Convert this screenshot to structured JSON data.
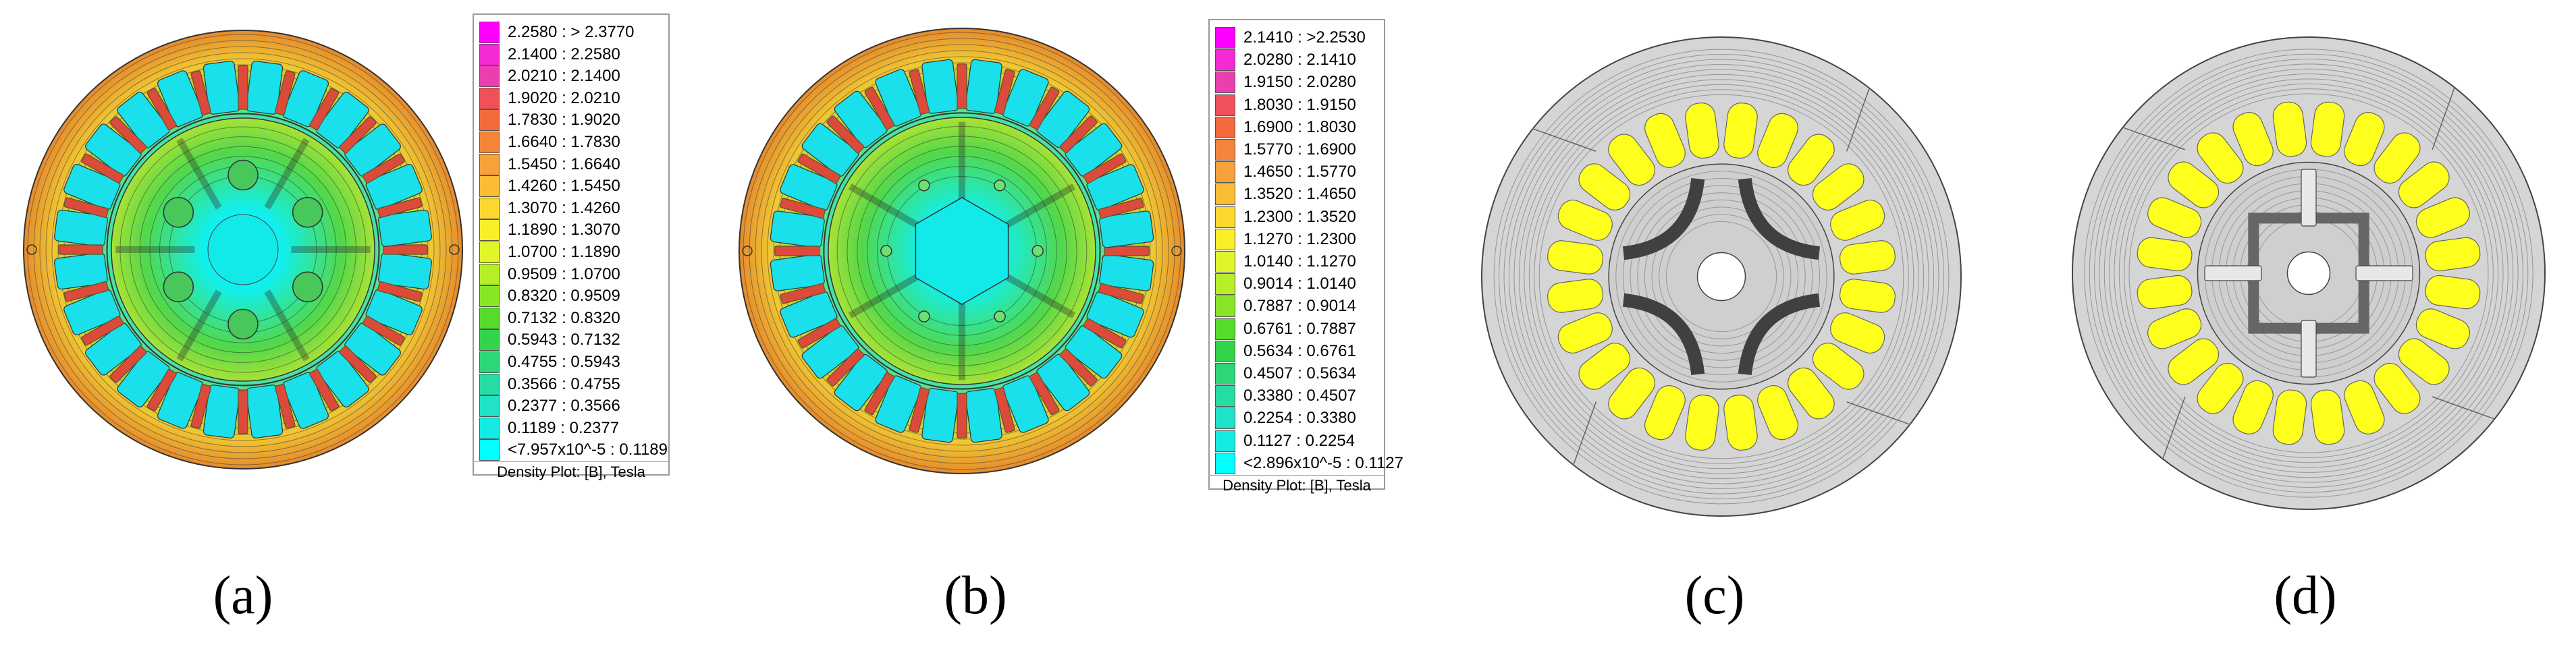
{
  "panels": [
    {
      "id": "a",
      "label": "(a)",
      "kind": "fluxmap",
      "rotor_poles": 6
    },
    {
      "id": "b",
      "label": "(b)",
      "kind": "fluxmap",
      "rotor_poles": 6
    },
    {
      "id": "c",
      "label": "(c)",
      "kind": "fluxlines",
      "rotor_poles": 4
    },
    {
      "id": "d",
      "label": "(d)",
      "kind": "fluxlines",
      "rotor_poles": 4
    }
  ],
  "legend_a": {
    "title": "Density Plot: [B], Tesla",
    "rows": [
      {
        "range": "2.2580 : > 2.3770",
        "color": "#ff00ff"
      },
      {
        "range": "2.1400 : 2.2580",
        "color": "#f42ad2"
      },
      {
        "range": "2.0210 : 2.1400",
        "color": "#ea3fae"
      },
      {
        "range": "1.9020 : 2.0210",
        "color": "#f0505a"
      },
      {
        "range": "1.7830 : 1.9020",
        "color": "#f26a3c"
      },
      {
        "range": "1.6640 : 1.7830",
        "color": "#f4843a"
      },
      {
        "range": "1.5450 : 1.6640",
        "color": "#f8a03a"
      },
      {
        "range": "1.4260 : 1.5450",
        "color": "#fbbd35"
      },
      {
        "range": "1.3070 : 1.4260",
        "color": "#fcd930"
      },
      {
        "range": "1.1890 : 1.3070",
        "color": "#fbef2a"
      },
      {
        "range": "1.0700 : 1.1890",
        "color": "#e0f52a"
      },
      {
        "range": "0.9509 : 1.0700",
        "color": "#b6ee28"
      },
      {
        "range": "0.8320 : 0.9509",
        "color": "#88e626"
      },
      {
        "range": "0.7132 : 0.8320",
        "color": "#55dc2a"
      },
      {
        "range": "0.5943 : 0.7132",
        "color": "#33d44a"
      },
      {
        "range": "0.4755 : 0.5943",
        "color": "#2ed67a"
      },
      {
        "range": "0.3566 : 0.4755",
        "color": "#26dba4"
      },
      {
        "range": "0.2377 : 0.3566",
        "color": "#1fe2c8"
      },
      {
        "range": "0.1189 : 0.2377",
        "color": "#14ebe3"
      },
      {
        "range": "<7.957x10^-5 : 0.1189",
        "color": "#00ffff"
      }
    ]
  },
  "legend_b": {
    "title": "Density Plot: [B], Tesla",
    "rows": [
      {
        "range": "2.1410 : >2.2530",
        "color": "#ff00ff"
      },
      {
        "range": "2.0280 : 2.1410",
        "color": "#f42ad2"
      },
      {
        "range": "1.9150 : 2.0280",
        "color": "#ea3fae"
      },
      {
        "range": "1.8030 : 1.9150",
        "color": "#f0505a"
      },
      {
        "range": "1.6900 : 1.8030",
        "color": "#f26a3c"
      },
      {
        "range": "1.5770 : 1.6900",
        "color": "#f4843a"
      },
      {
        "range": "1.4650 : 1.5770",
        "color": "#f8a03a"
      },
      {
        "range": "1.3520 : 1.4650",
        "color": "#fbbd35"
      },
      {
        "range": "1.2300 : 1.3520",
        "color": "#fcd930"
      },
      {
        "range": "1.1270 : 1.2300",
        "color": "#fbef2a"
      },
      {
        "range": "1.0140 : 1.1270",
        "color": "#e0f52a"
      },
      {
        "range": "0.9014 : 1.0140",
        "color": "#b6ee28"
      },
      {
        "range": "0.7887 : 0.9014",
        "color": "#88e626"
      },
      {
        "range": "0.6761 : 0.7887",
        "color": "#55dc2a"
      },
      {
        "range": "0.5634 : 0.6761",
        "color": "#33d44a"
      },
      {
        "range": "0.4507 : 0.5634",
        "color": "#2ed67a"
      },
      {
        "range": "0.3380 : 0.4507",
        "color": "#26dba4"
      },
      {
        "range": "0.2254 : 0.3380",
        "color": "#1fe2c8"
      },
      {
        "range": "0.1127 : 0.2254",
        "color": "#14ebe3"
      },
      {
        "range": "<2.896x10^-5 : 0.1127",
        "color": "#00ffff"
      }
    ]
  },
  "colors": {
    "flux_outer": "#e58a2c",
    "flux_mid": "#9be03a",
    "flux_low": "#19e4e0",
    "slot_cyan": "#19e0ea",
    "tooth_red": "#dc4a3c",
    "gray_steel": "#d5d5d5",
    "coil_yellow": "#ffff1e",
    "magnet_dark": "#404040",
    "line": "#222222"
  }
}
